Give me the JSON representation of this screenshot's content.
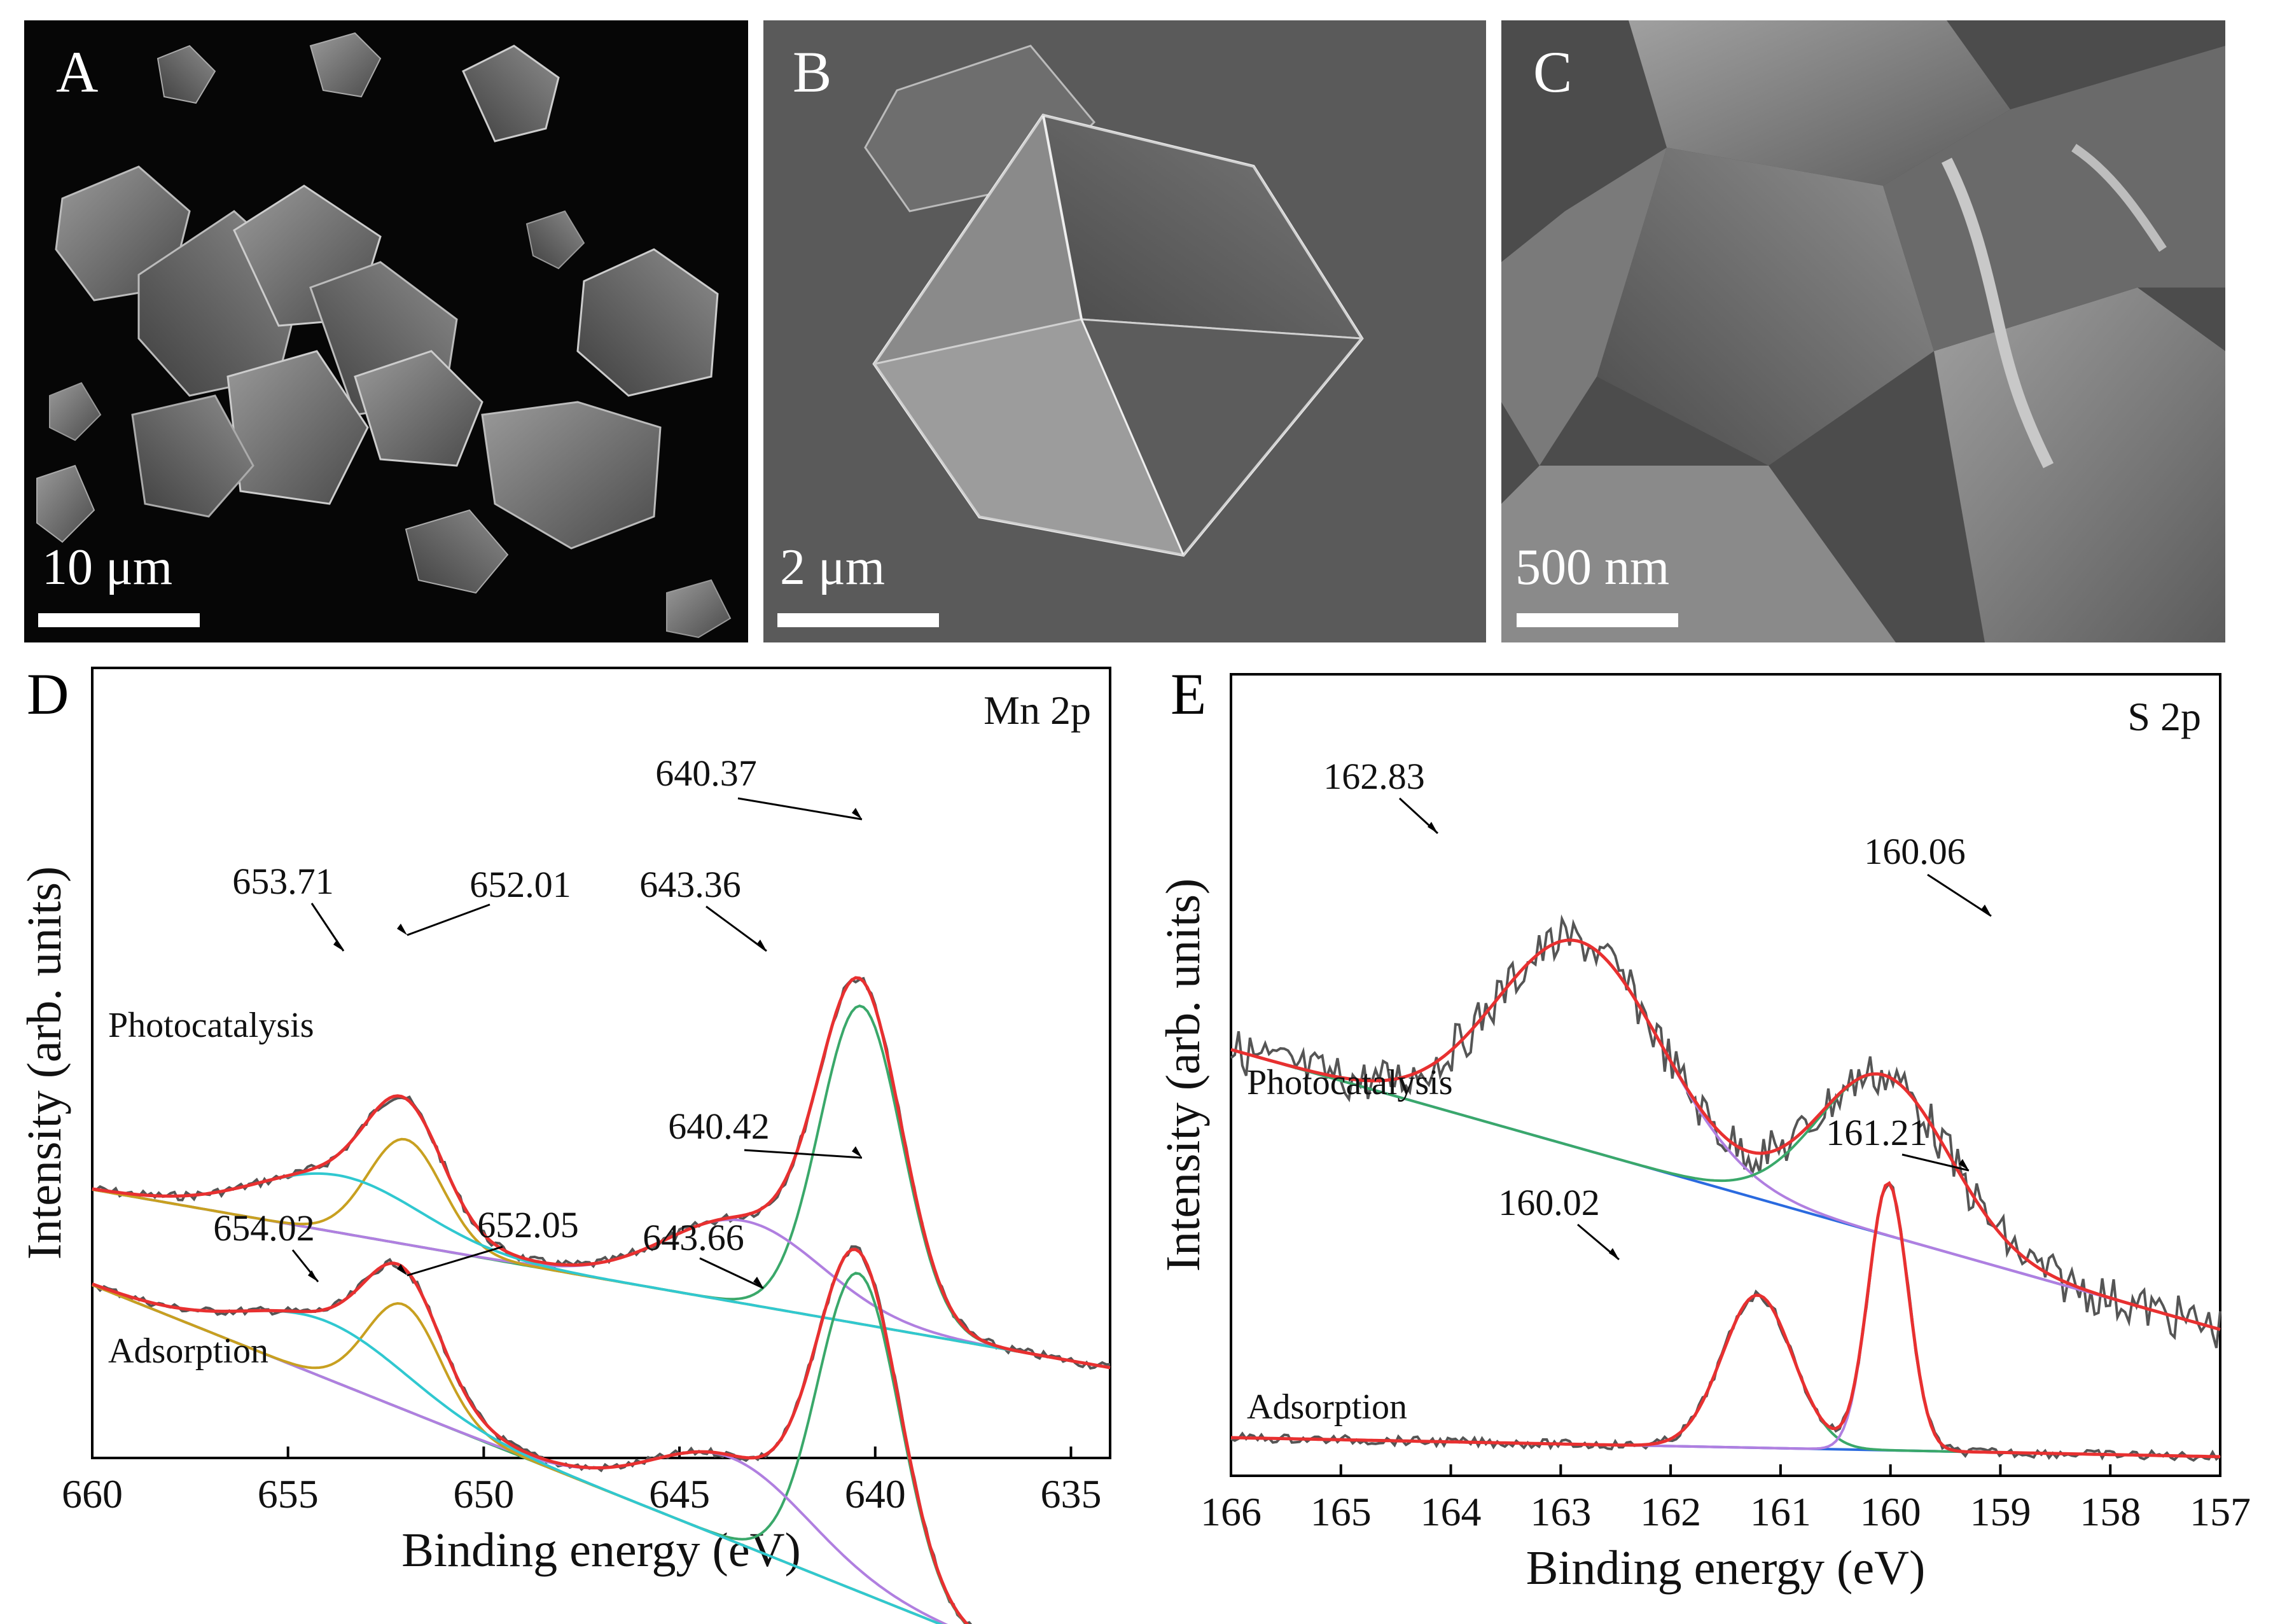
{
  "panels_sem": [
    {
      "letter": "A",
      "scale": "10 μm"
    },
    {
      "letter": "B",
      "scale": "2 μm"
    },
    {
      "letter": "C",
      "scale": "500 nm"
    }
  ],
  "chart_data": [
    {
      "panel": "D",
      "type": "line",
      "title": "Mn 2p",
      "xlabel": "Binding energy (eV)",
      "ylabel": "Intensity (arb. units)",
      "xlim": [
        660,
        634
      ],
      "xticks": [
        "660",
        "655",
        "650",
        "645",
        "640",
        "635"
      ],
      "sample_labels": [
        "Photocatalysis",
        "Adsorption"
      ],
      "peaks": {
        "photocatalysis": [
          "640.37",
          "643.36",
          "652.01",
          "653.71"
        ],
        "adsorption": [
          "640.42",
          "643.66",
          "652.05",
          "654.02"
        ]
      },
      "series": [
        {
          "name": "Photocatalysis",
          "peaks": [
            640.37,
            643.36,
            652.01,
            653.71
          ]
        },
        {
          "name": "Adsorption",
          "peaks": [
            640.42,
            643.66,
            652.05,
            654.02
          ]
        }
      ],
      "colors": {
        "raw": "#555555",
        "fit": "#e83030",
        "mn_main": "#3aa86a",
        "mn_sat": "#b07fe0",
        "mn_2p12": "#c8a020",
        "mn_2p12_sat": "#30c8d0"
      }
    },
    {
      "panel": "E",
      "type": "line",
      "title": "S 2p",
      "xlabel": "Binding energy (eV)",
      "ylabel": "Intensity (arb. units)",
      "xlim": [
        166,
        157
      ],
      "xticks": [
        "166",
        "165",
        "164",
        "163",
        "162",
        "161",
        "160",
        "159",
        "158",
        "157"
      ],
      "sample_labels": [
        "Photocatalysis",
        "Adsorption"
      ],
      "peaks": {
        "photocatalysis": [
          "162.83",
          "160.06"
        ],
        "adsorption": [
          "161.21",
          "160.02"
        ]
      },
      "series": [
        {
          "name": "Photocatalysis",
          "peaks": [
            162.83,
            160.06
          ]
        },
        {
          "name": "Adsorption",
          "peaks": [
            161.21,
            160.02
          ]
        }
      ],
      "colors": {
        "raw": "#555555",
        "fit": "#e83030",
        "s_a": "#b07fe0",
        "s_b": "#3aa86a",
        "bg": "#2a6adf"
      }
    }
  ]
}
